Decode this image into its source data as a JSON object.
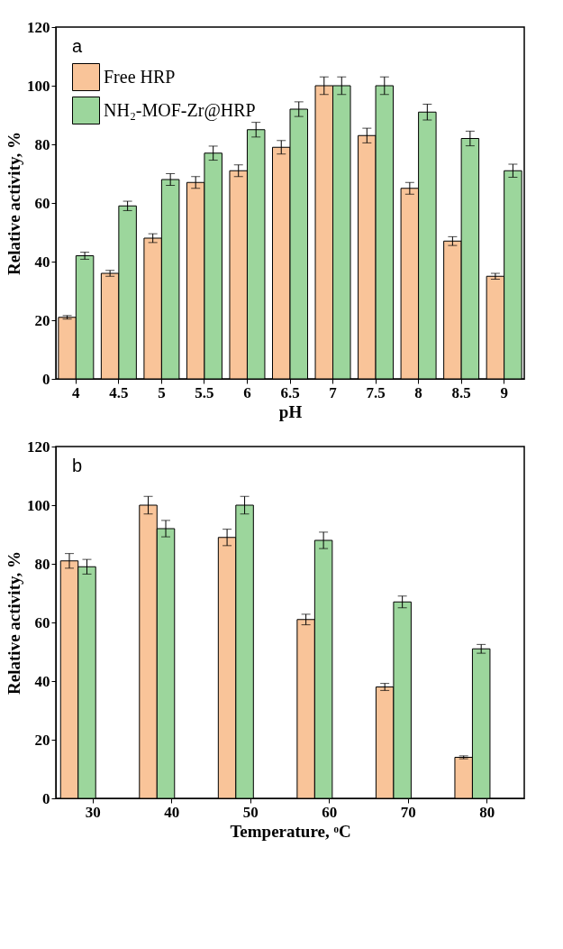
{
  "chart_data": [
    {
      "type": "bar",
      "annotations": [
        "a"
      ],
      "xlabel": "pH",
      "ylabel": "Relative activity, %",
      "categories": [
        "4",
        "4.5",
        "5",
        "5.5",
        "6",
        "6.5",
        "7",
        "7.5",
        "8",
        "8.5",
        "9"
      ],
      "series": [
        {
          "name": "Free HRP",
          "color": "#f9c499",
          "values": [
            21,
            36,
            48,
            67,
            71,
            79,
            100,
            83,
            65,
            47,
            35
          ],
          "errors": [
            0.6,
            1,
            1.5,
            2,
            2,
            2.3,
            3,
            2.5,
            2,
            1.5,
            1
          ]
        },
        {
          "name": "NH₂-MOF-Zr@HRP",
          "color": "#9cd69c",
          "values": [
            42,
            59,
            68,
            77,
            85,
            92,
            100,
            100,
            91,
            82,
            71
          ],
          "errors": [
            1.2,
            1.6,
            2,
            2.4,
            2.5,
            2.5,
            3,
            3,
            2.7,
            2.5,
            2.2
          ]
        }
      ],
      "ylim": [
        0,
        120
      ],
      "yticks": [
        0,
        20,
        40,
        60,
        80,
        100,
        120
      ],
      "grid": false,
      "legend": "top left"
    },
    {
      "type": "bar",
      "annotations": [
        "b"
      ],
      "xlabel": "Temperature, ᵒC",
      "ylabel": "Relative activity, %",
      "categories": [
        "30",
        "40",
        "50",
        "60",
        "70",
        "80"
      ],
      "series": [
        {
          "name": "Free HRP",
          "color": "#f9c499",
          "values": [
            81,
            100,
            89,
            61,
            38,
            14
          ],
          "errors": [
            2.5,
            3,
            2.8,
            1.8,
            1.2,
            0.5
          ]
        },
        {
          "name": "NH₂-MOF-Zr@HRP",
          "color": "#9cd69c",
          "values": [
            79,
            92,
            100,
            88,
            67,
            51
          ],
          "errors": [
            2.5,
            2.8,
            3,
            2.8,
            2,
            1.5
          ]
        }
      ],
      "ylim": [
        0,
        120
      ],
      "yticks": [
        0,
        20,
        40,
        60,
        80,
        100,
        120
      ],
      "grid": false,
      "legend": "top right"
    }
  ]
}
